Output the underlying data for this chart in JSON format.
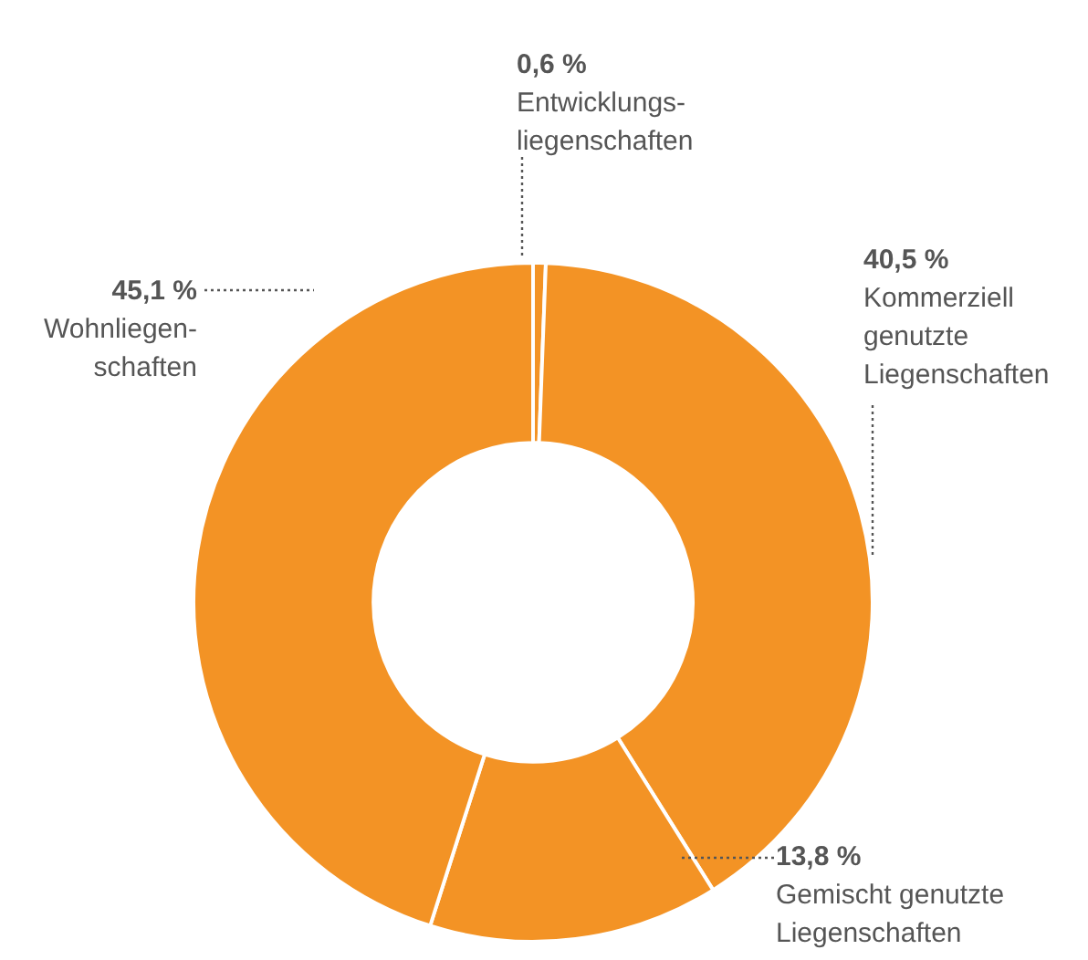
{
  "chart_data": {
    "type": "donut",
    "categories": [
      "Entwicklungs-\nliegenschaften",
      "Kommerziell\ngenutzte\nLiegenschaften",
      "Gemischt genutzte\nLiegenschaften",
      "Wohnliegen-\nschaften"
    ],
    "values": [
      0.6,
      40.5,
      13.8,
      45.1
    ],
    "colors": [
      "#f39325",
      "#f39325",
      "#f39325",
      "#f39325"
    ],
    "value_labels": [
      "0,6 %",
      "40,5 %",
      "13,8 %",
      "45,1 %"
    ]
  }
}
